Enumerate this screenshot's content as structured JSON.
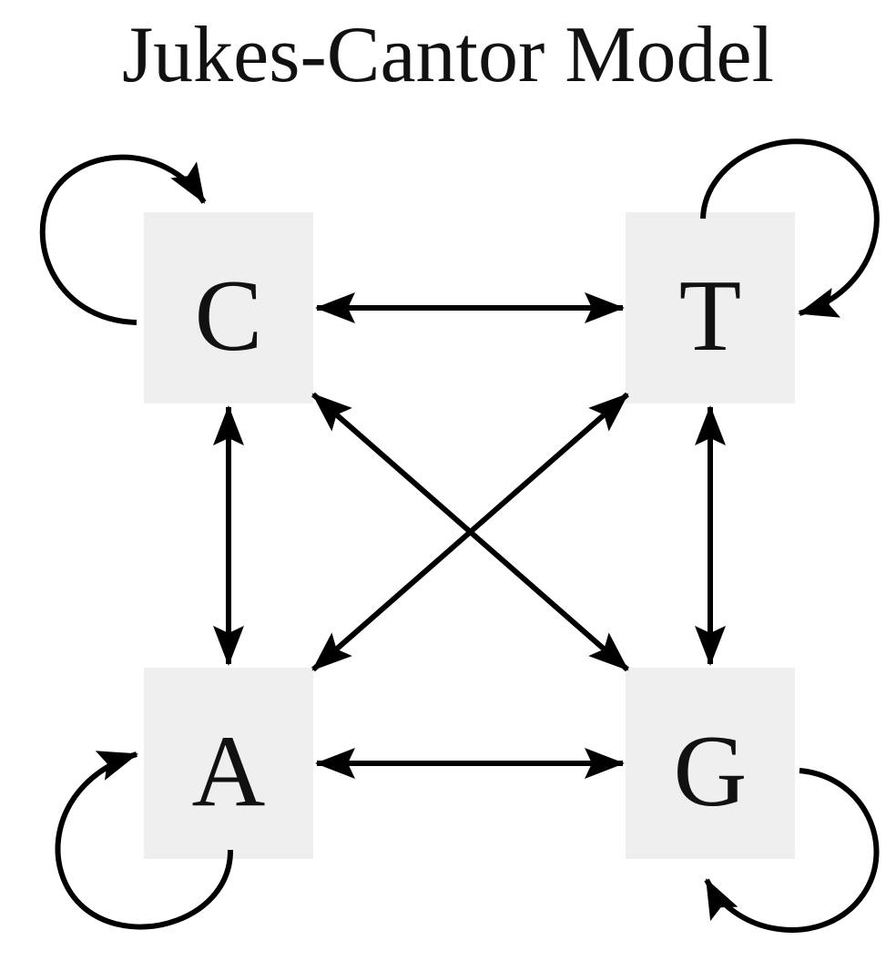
{
  "title": "Jukes-Cantor Model",
  "nodes": {
    "C": {
      "label": "C"
    },
    "T": {
      "label": "T"
    },
    "A": {
      "label": "A"
    },
    "G": {
      "label": "G"
    }
  },
  "edges": [
    {
      "from": "C",
      "to": "T",
      "bidirectional": true
    },
    {
      "from": "A",
      "to": "G",
      "bidirectional": true
    },
    {
      "from": "C",
      "to": "A",
      "bidirectional": true
    },
    {
      "from": "T",
      "to": "G",
      "bidirectional": true
    },
    {
      "from": "C",
      "to": "G",
      "bidirectional": true
    },
    {
      "from": "T",
      "to": "A",
      "bidirectional": true
    },
    {
      "from": "C",
      "to": "C",
      "self_loop": true
    },
    {
      "from": "T",
      "to": "T",
      "self_loop": true
    },
    {
      "from": "A",
      "to": "A",
      "self_loop": true
    },
    {
      "from": "G",
      "to": "G",
      "self_loop": true
    }
  ],
  "colors": {
    "node_fill": "#efefef",
    "edge": "#000000",
    "text": "#111111"
  }
}
